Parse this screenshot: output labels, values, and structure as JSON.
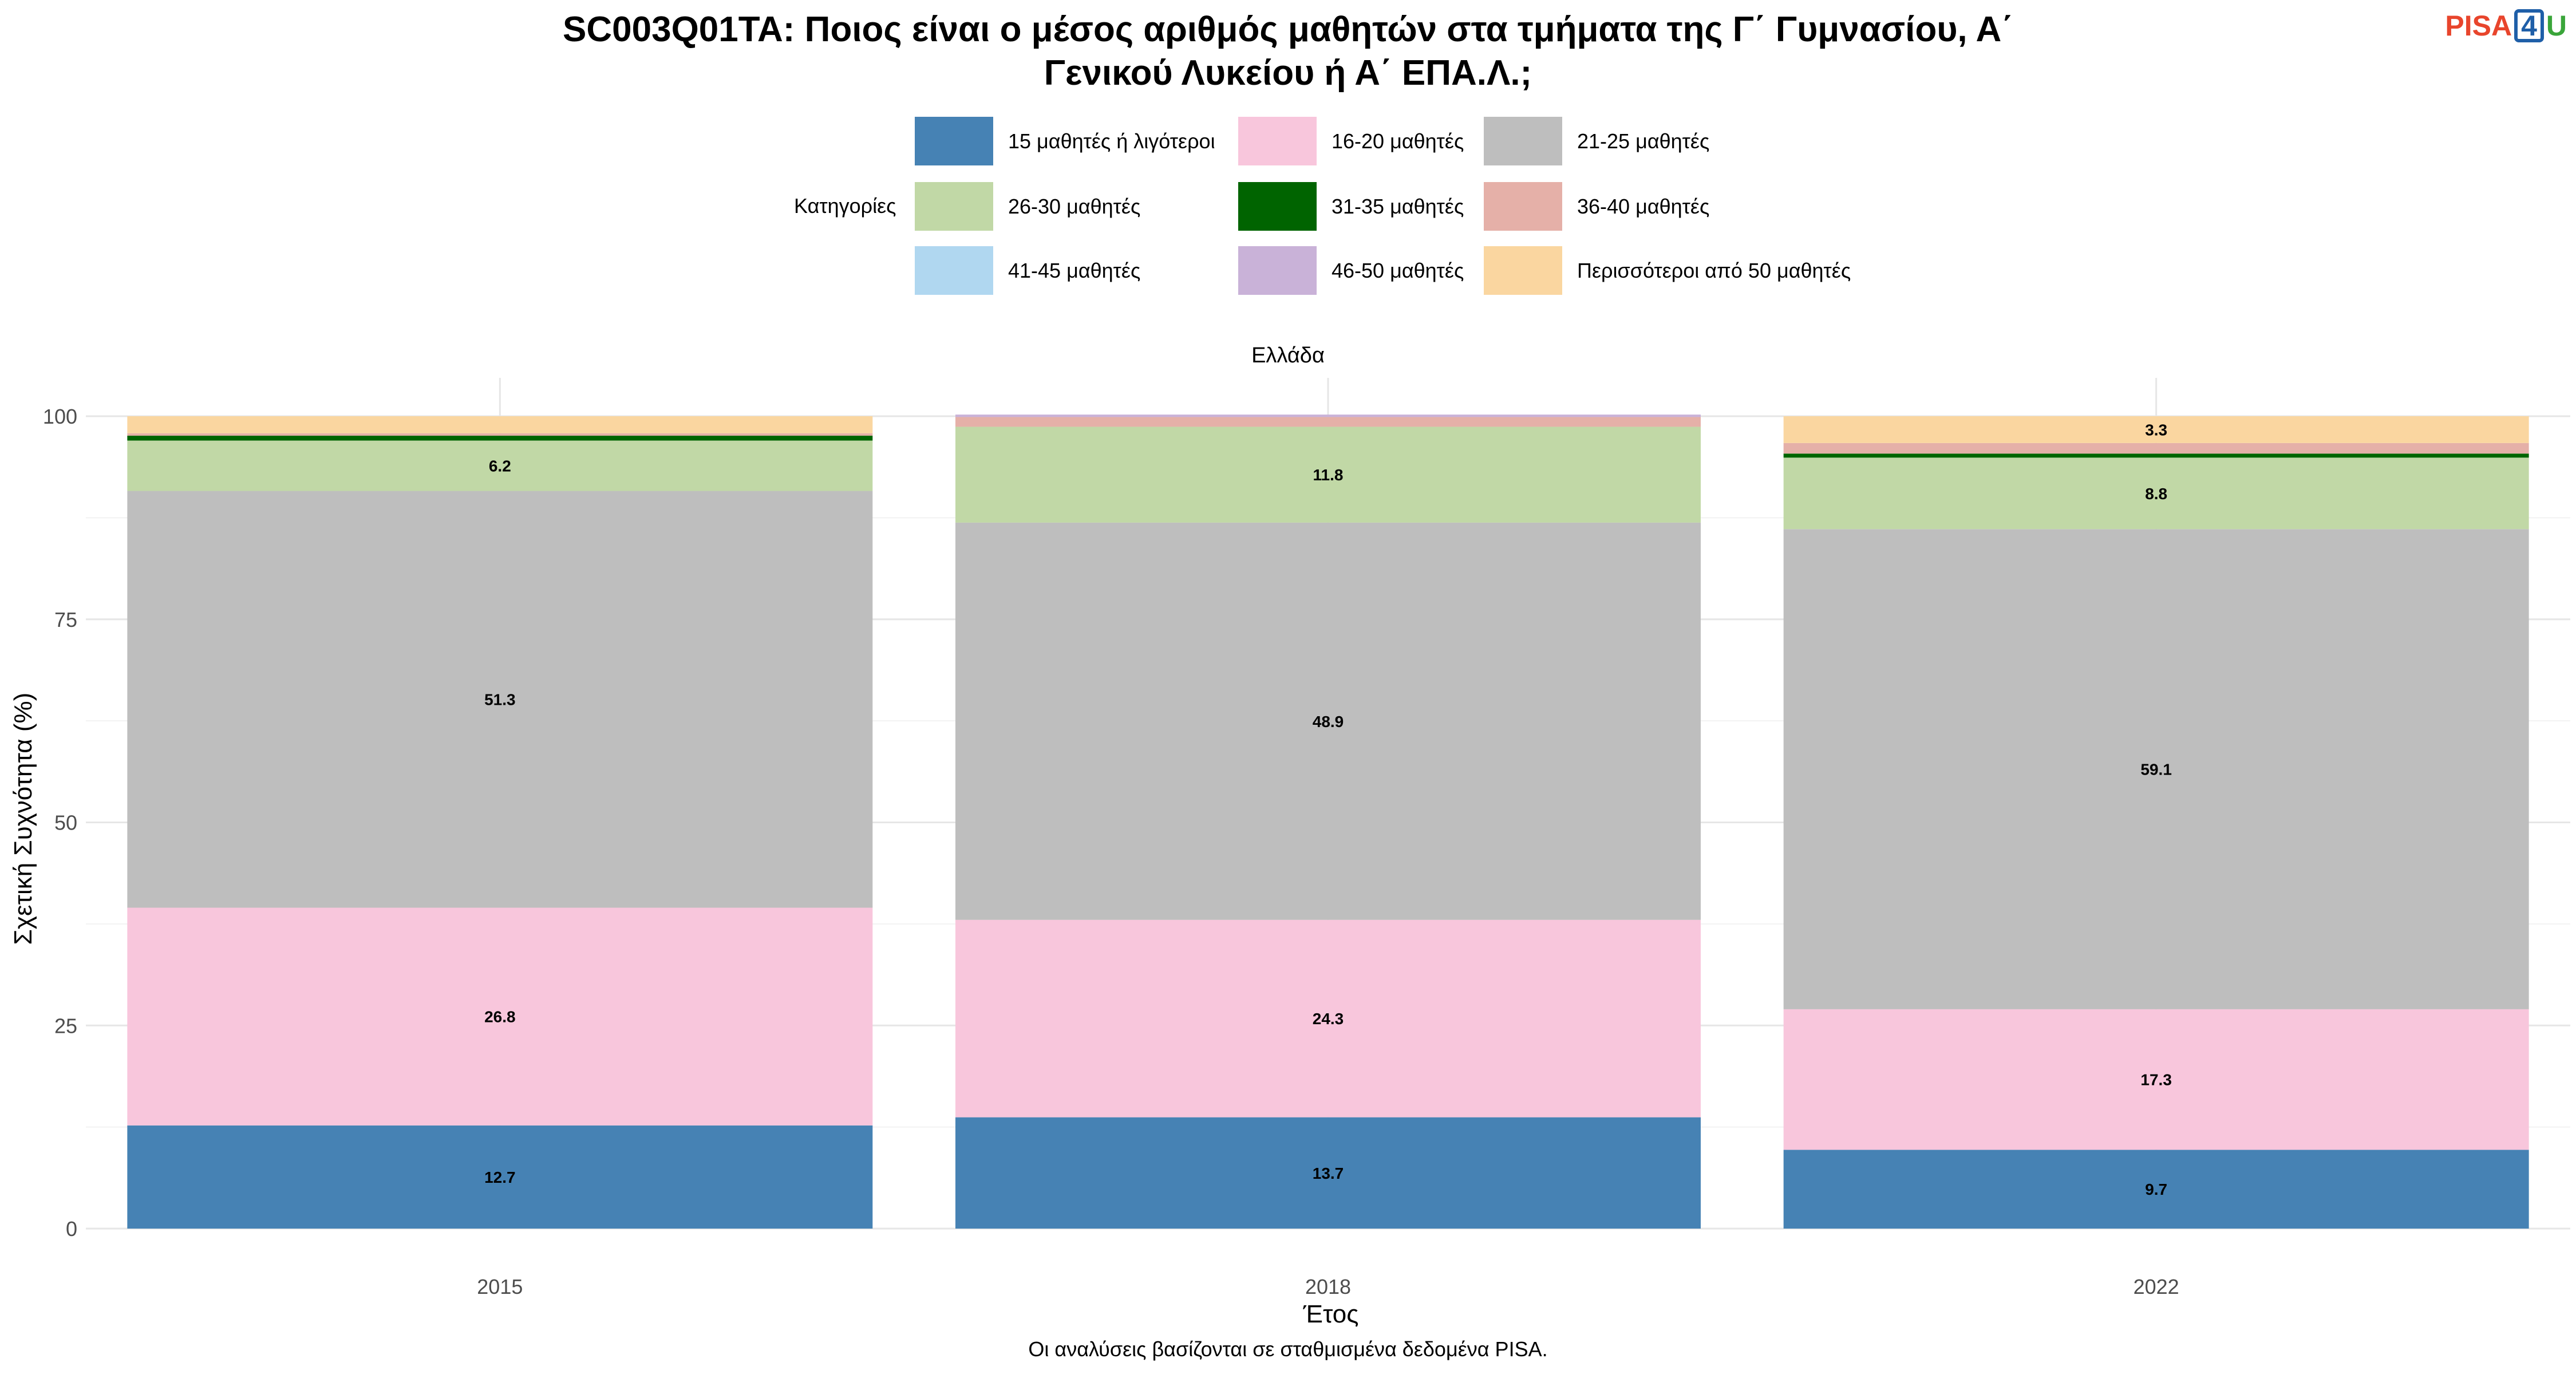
{
  "title": "SC003Q01TA: Ποιος είναι ο μέσος αριθμός μαθητών στα τμήματα της Γ΄ Γυμνασίου, Α΄ Γενικού Λυκείου ή Α΄ ΕΠΑ.Λ.;",
  "title_lines": [
    "SC003Q01TA: Ποιος είναι ο μέσος αριθμός μαθητών στα τμήματα της Γ΄ Γυμνασίου, Α΄",
    "Γενικού Λυκείου ή Α΄ ΕΠΑ.Λ.;"
  ],
  "logo": {
    "pisa": "PISA",
    "four": "4",
    "u": "U"
  },
  "legend": {
    "title": "Κατηγορίες",
    "position": "top",
    "items": [
      {
        "label": "15 μαθητές ή λιγότεροι",
        "color": "#4682b4"
      },
      {
        "label": "16-20 μαθητές",
        "color": "#f8c6dc"
      },
      {
        "label": "21-25 μαθητές",
        "color": "#bebebe"
      },
      {
        "label": "26-30 μαθητές",
        "color": "#c1d8a6"
      },
      {
        "label": "31-35 μαθητές",
        "color": "#006400"
      },
      {
        "label": "36-40 μαθητές",
        "color": "#e5b0a8"
      },
      {
        "label": "41-45 μαθητές",
        "color": "#b0d7f0"
      },
      {
        "label": "46-50 μαθητές",
        "color": "#c9b2d8"
      },
      {
        "label": "Περισσότεροι από 50 μαθητές",
        "color": "#fad6a0"
      }
    ]
  },
  "caption": "Οι αναλύσεις βασίζονται σε σταθμισμένα δεδομένα PISA.",
  "chart_data": {
    "type": "bar",
    "stacked": true,
    "facet": "Ελλάδα",
    "categories": [
      "2015",
      "2018",
      "2022"
    ],
    "xlabel": "Έτος",
    "ylabel": "Σχετική Συχνότητα (%)",
    "ylim": [
      0,
      100
    ],
    "yticks": [
      0,
      25,
      50,
      75,
      100
    ],
    "grid": true,
    "series": [
      {
        "name": "15 μαθητές ή λιγότεροι",
        "values": [
          12.7,
          13.7,
          9.7
        ],
        "labels": [
          "12.7",
          "13.7",
          "9.7"
        ]
      },
      {
        "name": "16-20 μαθητές",
        "values": [
          26.8,
          24.3,
          17.3
        ],
        "labels": [
          "26.8",
          "24.3",
          "17.3"
        ]
      },
      {
        "name": "21-25 μαθητές",
        "values": [
          51.3,
          48.9,
          59.1
        ],
        "labels": [
          "51.3",
          "48.9",
          "59.1"
        ]
      },
      {
        "name": "26-30 μαθητές",
        "values": [
          6.2,
          11.8,
          8.8
        ],
        "labels": [
          "6.2",
          "11.8",
          "8.8"
        ]
      },
      {
        "name": "31-35 μαθητές",
        "values": [
          0.6,
          0.0,
          0.5
        ],
        "labels": [
          "",
          "",
          ""
        ]
      },
      {
        "name": "36-40 μαθητές",
        "values": [
          0.3,
          1.2,
          1.3
        ],
        "labels": [
          "",
          "",
          ""
        ]
      },
      {
        "name": "41-45 μαθητές",
        "values": [
          0.0,
          0.0,
          0.0
        ],
        "labels": [
          "",
          "",
          ""
        ]
      },
      {
        "name": "46-50 μαθητές",
        "values": [
          0.0,
          0.3,
          0.0
        ],
        "labels": [
          "",
          "",
          ""
        ]
      },
      {
        "name": "Περισσότεροι από 50 μαθητές",
        "values": [
          2.1,
          0.0,
          3.3
        ],
        "labels": [
          "",
          "",
          "3.3"
        ]
      }
    ]
  }
}
